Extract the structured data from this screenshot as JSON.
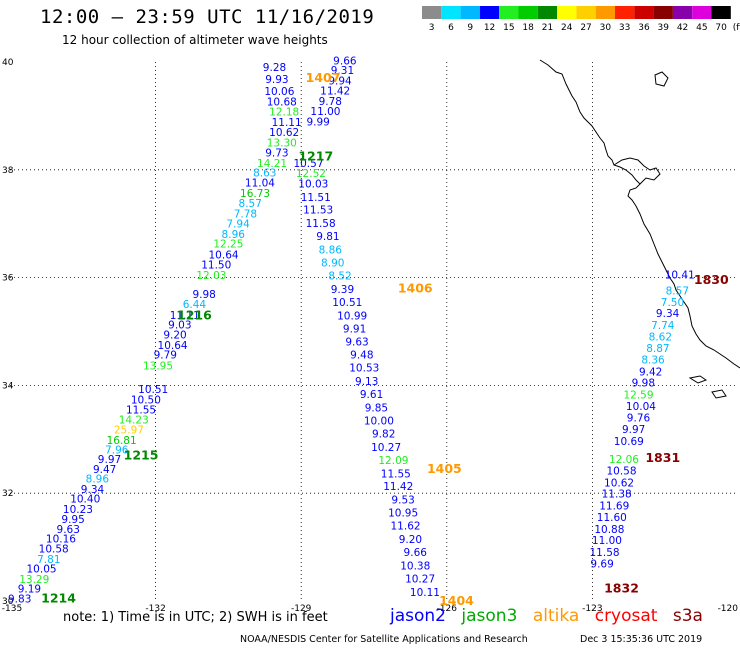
{
  "header": {
    "title": "12:00 – 23:59 UTC 11/16/2019",
    "subtitle": "12 hour collection of altimeter wave heights"
  },
  "legend": {
    "unit": "(ft)",
    "bins": [
      {
        "label": "3",
        "color": "#8c8c8c"
      },
      {
        "label": "6",
        "color": "#00e5ff"
      },
      {
        "label": "9",
        "color": "#00b8ff"
      },
      {
        "label": "12",
        "color": "#0000ff"
      },
      {
        "label": "15",
        "color": "#22ee22"
      },
      {
        "label": "18",
        "color": "#00cc00"
      },
      {
        "label": "21",
        "color": "#008800"
      },
      {
        "label": "24",
        "color": "#ffff00"
      },
      {
        "label": "27",
        "color": "#ffd000"
      },
      {
        "label": "30",
        "color": "#ff9900"
      },
      {
        "label": "33",
        "color": "#ff2200"
      },
      {
        "label": "36",
        "color": "#cc0000"
      },
      {
        "label": "39",
        "color": "#880000"
      },
      {
        "label": "42",
        "color": "#8800aa"
      },
      {
        "label": "45",
        "color": "#dd00dd"
      },
      {
        "label": "70",
        "color": "#000000"
      }
    ]
  },
  "map_axes": {
    "lon_min": -135,
    "lon_max": -120,
    "lat_min": 30,
    "lat_max": 40,
    "lon_ticks": [
      {
        "value": -135,
        "label": "-135"
      },
      {
        "value": -132,
        "label": "-132"
      },
      {
        "value": -129,
        "label": "-129"
      },
      {
        "value": -126,
        "label": "-126"
      },
      {
        "value": -123,
        "label": "-123"
      },
      {
        "value": -120,
        "label": "-120"
      }
    ],
    "lat_ticks": [
      {
        "value": 40,
        "label": "40"
      },
      {
        "value": 38,
        "label": "38"
      },
      {
        "value": 36,
        "label": "36"
      },
      {
        "value": 34,
        "label": "34"
      },
      {
        "value": 32,
        "label": "32"
      },
      {
        "value": 30,
        "label": "30"
      }
    ]
  },
  "pass_labels": [
    {
      "text": "1214",
      "sat": "jason3",
      "lon": -134.0,
      "lat": 30.05
    },
    {
      "text": "1215",
      "sat": "jason3",
      "lon": -132.3,
      "lat": 32.7
    },
    {
      "text": "1216",
      "sat": "jason3",
      "lon": -131.2,
      "lat": 35.3
    },
    {
      "text": "1217",
      "sat": "jason3",
      "lon": -128.7,
      "lat": 38.25
    },
    {
      "text": "1404",
      "sat": "altika",
      "lon": -125.8,
      "lat": 30.0
    },
    {
      "text": "1405",
      "sat": "altika",
      "lon": -126.05,
      "lat": 32.45
    },
    {
      "text": "1406",
      "sat": "altika",
      "lon": -126.65,
      "lat": 35.8
    },
    {
      "text": "1407",
      "sat": "altika",
      "lon": -128.55,
      "lat": 39.7
    },
    {
      "text": "1830",
      "sat": "s3a",
      "lon": -120.55,
      "lat": 35.96
    },
    {
      "text": "1831",
      "sat": "s3a",
      "lon": -121.55,
      "lat": 32.65
    },
    {
      "text": "1832",
      "sat": "s3a",
      "lon": -122.4,
      "lat": 30.23
    }
  ],
  "tracks": [
    {
      "name": "1214-1217",
      "points": [
        {
          "v": "9.83",
          "c": "#0000ff",
          "lon": -134.8,
          "lat": 30.05
        },
        {
          "v": "9.19",
          "c": "#0000ff",
          "lon": -134.6,
          "lat": 30.23
        },
        {
          "v": "13.29",
          "c": "#22ee22",
          "lon": -134.5,
          "lat": 30.41
        },
        {
          "v": "10.05",
          "c": "#0000ff",
          "lon": -134.35,
          "lat": 30.6
        },
        {
          "v": "7.81",
          "c": "#00b8ff",
          "lon": -134.2,
          "lat": 30.78
        },
        {
          "v": "10.58",
          "c": "#0000ff",
          "lon": -134.1,
          "lat": 30.97
        },
        {
          "v": "10.16",
          "c": "#0000ff",
          "lon": -133.95,
          "lat": 31.16
        },
        {
          "v": "9.63",
          "c": "#0000ff",
          "lon": -133.8,
          "lat": 31.34
        },
        {
          "v": "9.95",
          "c": "#0000ff",
          "lon": -133.7,
          "lat": 31.52
        },
        {
          "v": "10.23",
          "c": "#0000ff",
          "lon": -133.6,
          "lat": 31.71
        },
        {
          "v": "10.40",
          "c": "#0000ff",
          "lon": -133.45,
          "lat": 31.9
        },
        {
          "v": "9.34",
          "c": "#0000ff",
          "lon": -133.3,
          "lat": 32.08
        },
        {
          "v": "8.96",
          "c": "#00b8ff",
          "lon": -133.2,
          "lat": 32.27
        },
        {
          "v": "9.47",
          "c": "#0000ff",
          "lon": -133.05,
          "lat": 32.45
        },
        {
          "v": "9.97",
          "c": "#0000ff",
          "lon": -132.95,
          "lat": 32.63
        },
        {
          "v": "7.96",
          "c": "#00b8ff",
          "lon": -132.8,
          "lat": 32.81
        },
        {
          "v": "16.81",
          "c": "#00cc00",
          "lon": -132.7,
          "lat": 32.99
        },
        {
          "v": "25.97",
          "c": "#ffd000",
          "lon": -132.55,
          "lat": 33.18
        },
        {
          "v": "14.23",
          "c": "#22ee22",
          "lon": -132.45,
          "lat": 33.37
        },
        {
          "v": "11.55",
          "c": "#0000ff",
          "lon": -132.3,
          "lat": 33.55
        },
        {
          "v": "10.50",
          "c": "#0000ff",
          "lon": -132.2,
          "lat": 33.74
        },
        {
          "v": "10.51",
          "c": "#0000ff",
          "lon": -132.05,
          "lat": 33.93
        },
        {
          "v": "13.95",
          "c": "#22ee22",
          "lon": -131.95,
          "lat": 34.37
        },
        {
          "v": "9.79",
          "c": "#0000ff",
          "lon": -131.8,
          "lat": 34.57
        },
        {
          "v": "10.64",
          "c": "#0000ff",
          "lon": -131.65,
          "lat": 34.75
        },
        {
          "v": "9.20",
          "c": "#0000ff",
          "lon": -131.6,
          "lat": 34.94
        },
        {
          "v": "9.03",
          "c": "#0000ff",
          "lon": -131.5,
          "lat": 35.13
        },
        {
          "v": "11.11",
          "c": "#0000ff",
          "lon": -131.4,
          "lat": 35.31
        },
        {
          "v": "6.44",
          "c": "#00b8ff",
          "lon": -131.2,
          "lat": 35.51
        },
        {
          "v": "9.98",
          "c": "#0000ff",
          "lon": -131.0,
          "lat": 35.7
        },
        {
          "v": "12.03",
          "c": "#22ee22",
          "lon": -130.85,
          "lat": 36.05
        },
        {
          "v": "11.50",
          "c": "#0000ff",
          "lon": -130.75,
          "lat": 36.24
        },
        {
          "v": "10.64",
          "c": "#0000ff",
          "lon": -130.6,
          "lat": 36.43
        },
        {
          "v": "12.25",
          "c": "#22ee22",
          "lon": -130.5,
          "lat": 36.63
        },
        {
          "v": "8.96",
          "c": "#00b8ff",
          "lon": -130.4,
          "lat": 36.81
        },
        {
          "v": "7.94",
          "c": "#00b8ff",
          "lon": -130.3,
          "lat": 37.0
        },
        {
          "v": "7.78",
          "c": "#00b8ff",
          "lon": -130.15,
          "lat": 37.19
        },
        {
          "v": "8.57",
          "c": "#00b8ff",
          "lon": -130.05,
          "lat": 37.38
        },
        {
          "v": "16.73",
          "c": "#00cc00",
          "lon": -129.95,
          "lat": 37.57
        },
        {
          "v": "11.04",
          "c": "#0000ff",
          "lon": -129.85,
          "lat": 37.76
        },
        {
          "v": "8.63",
          "c": "#00b8ff",
          "lon": -129.75,
          "lat": 37.95
        },
        {
          "v": "14.21",
          "c": "#22ee22",
          "lon": -129.6,
          "lat": 38.13
        },
        {
          "v": "9.73",
          "c": "#0000ff",
          "lon": -129.5,
          "lat": 38.32
        },
        {
          "v": "13.30",
          "c": "#22ee22",
          "lon": -129.4,
          "lat": 38.51
        },
        {
          "v": "10.62",
          "c": "#0000ff",
          "lon": -129.35,
          "lat": 38.7
        },
        {
          "v": "11.11",
          "c": "#0000ff",
          "lon": -129.3,
          "lat": 38.89
        },
        {
          "v": "12.18",
          "c": "#22ee22",
          "lon": -129.35,
          "lat": 39.08
        },
        {
          "v": "10.68",
          "c": "#0000ff",
          "lon": -129.4,
          "lat": 39.27
        },
        {
          "v": "10.06",
          "c": "#0000ff",
          "lon": -129.45,
          "lat": 39.46
        },
        {
          "v": "9.93",
          "c": "#0000ff",
          "lon": -129.5,
          "lat": 39.68
        },
        {
          "v": "9.28",
          "c": "#0000ff",
          "lon": -129.55,
          "lat": 39.91
        }
      ]
    },
    {
      "name": "1404-1407",
      "points": [
        {
          "v": "9.66",
          "c": "#0000ff",
          "lon": -128.1,
          "lat": 40.03
        },
        {
          "v": "9.31",
          "c": "#0000ff",
          "lon": -128.15,
          "lat": 39.85
        },
        {
          "v": "9.94",
          "c": "#0000ff",
          "lon": -128.2,
          "lat": 39.66
        },
        {
          "v": "11.42",
          "c": "#0000ff",
          "lon": -128.3,
          "lat": 39.47
        },
        {
          "v": "9.78",
          "c": "#0000ff",
          "lon": -128.4,
          "lat": 39.28
        },
        {
          "v": "11.00",
          "c": "#0000ff",
          "lon": -128.5,
          "lat": 39.09
        },
        {
          "v": "9.99",
          "c": "#0000ff",
          "lon": -128.65,
          "lat": 38.9
        },
        {
          "v": "10.57",
          "c": "#0000ff",
          "lon": -128.85,
          "lat": 38.13
        },
        {
          "v": "12.52",
          "c": "#22ee22",
          "lon": -128.8,
          "lat": 37.94
        },
        {
          "v": "10.03",
          "c": "#0000ff",
          "lon": -128.75,
          "lat": 37.75
        },
        {
          "v": "11.51",
          "c": "#0000ff",
          "lon": -128.7,
          "lat": 37.5
        },
        {
          "v": "11.53",
          "c": "#0000ff",
          "lon": -128.65,
          "lat": 37.26
        },
        {
          "v": "11.58",
          "c": "#0000ff",
          "lon": -128.6,
          "lat": 37.01
        },
        {
          "v": "9.81",
          "c": "#0000ff",
          "lon": -128.45,
          "lat": 36.77
        },
        {
          "v": "8.86",
          "c": "#00b8ff",
          "lon": -128.4,
          "lat": 36.52
        },
        {
          "v": "8.90",
          "c": "#00b8ff",
          "lon": -128.35,
          "lat": 36.28
        },
        {
          "v": "8.52",
          "c": "#00b8ff",
          "lon": -128.2,
          "lat": 36.04
        },
        {
          "v": "9.39",
          "c": "#0000ff",
          "lon": -128.15,
          "lat": 35.79
        },
        {
          "v": "10.51",
          "c": "#0000ff",
          "lon": -128.05,
          "lat": 35.55
        },
        {
          "v": "10.99",
          "c": "#0000ff",
          "lon": -127.95,
          "lat": 35.3
        },
        {
          "v": "9.91",
          "c": "#0000ff",
          "lon": -127.9,
          "lat": 35.06
        },
        {
          "v": "9.63",
          "c": "#0000ff",
          "lon": -127.85,
          "lat": 34.81
        },
        {
          "v": "9.48",
          "c": "#0000ff",
          "lon": -127.75,
          "lat": 34.57
        },
        {
          "v": "10.53",
          "c": "#0000ff",
          "lon": -127.7,
          "lat": 34.33
        },
        {
          "v": "9.13",
          "c": "#0000ff",
          "lon": -127.65,
          "lat": 34.08
        },
        {
          "v": "9.61",
          "c": "#0000ff",
          "lon": -127.55,
          "lat": 33.84
        },
        {
          "v": "9.85",
          "c": "#0000ff",
          "lon": -127.45,
          "lat": 33.59
        },
        {
          "v": "10.00",
          "c": "#0000ff",
          "lon": -127.4,
          "lat": 33.35
        },
        {
          "v": "9.82",
          "c": "#0000ff",
          "lon": -127.3,
          "lat": 33.11
        },
        {
          "v": "10.27",
          "c": "#0000ff",
          "lon": -127.25,
          "lat": 32.86
        },
        {
          "v": "12.09",
          "c": "#22ee22",
          "lon": -127.1,
          "lat": 32.62
        },
        {
          "v": "11.55",
          "c": "#0000ff",
          "lon": -127.05,
          "lat": 32.37
        },
        {
          "v": "11.42",
          "c": "#0000ff",
          "lon": -127.0,
          "lat": 32.13
        },
        {
          "v": "9.53",
          "c": "#0000ff",
          "lon": -126.9,
          "lat": 31.88
        },
        {
          "v": "10.95",
          "c": "#0000ff",
          "lon": -126.9,
          "lat": 31.64
        },
        {
          "v": "11.62",
          "c": "#0000ff",
          "lon": -126.85,
          "lat": 31.4
        },
        {
          "v": "9.20",
          "c": "#0000ff",
          "lon": -126.75,
          "lat": 31.15
        },
        {
          "v": "9.66",
          "c": "#0000ff",
          "lon": -126.65,
          "lat": 30.91
        },
        {
          "v": "10.38",
          "c": "#0000ff",
          "lon": -126.65,
          "lat": 30.66
        },
        {
          "v": "10.27",
          "c": "#0000ff",
          "lon": -126.55,
          "lat": 30.42
        },
        {
          "v": "10.11",
          "c": "#0000ff",
          "lon": -126.45,
          "lat": 30.17
        }
      ]
    },
    {
      "name": "1830-1832",
      "points": [
        {
          "v": "10.41",
          "c": "#0000ff",
          "lon": -121.2,
          "lat": 36.06
        },
        {
          "v": "8.57",
          "c": "#00b8ff",
          "lon": -121.25,
          "lat": 35.76
        },
        {
          "v": "7.50",
          "c": "#00b8ff",
          "lon": -121.35,
          "lat": 35.55
        },
        {
          "v": "9.34",
          "c": "#0000ff",
          "lon": -121.45,
          "lat": 35.34
        },
        {
          "v": "7.74",
          "c": "#00b8ff",
          "lon": -121.55,
          "lat": 35.12
        },
        {
          "v": "8.62",
          "c": "#00b8ff",
          "lon": -121.6,
          "lat": 34.91
        },
        {
          "v": "8.87",
          "c": "#00b8ff",
          "lon": -121.65,
          "lat": 34.69
        },
        {
          "v": "8.36",
          "c": "#00b8ff",
          "lon": -121.75,
          "lat": 34.48
        },
        {
          "v": "9.42",
          "c": "#0000ff",
          "lon": -121.8,
          "lat": 34.26
        },
        {
          "v": "9.98",
          "c": "#0000ff",
          "lon": -121.95,
          "lat": 34.05
        },
        {
          "v": "12.59",
          "c": "#22ee22",
          "lon": -122.05,
          "lat": 33.83
        },
        {
          "v": "10.04",
          "c": "#0000ff",
          "lon": -122.0,
          "lat": 33.62
        },
        {
          "v": "9.76",
          "c": "#0000ff",
          "lon": -122.05,
          "lat": 33.4
        },
        {
          "v": "9.97",
          "c": "#0000ff",
          "lon": -122.15,
          "lat": 33.19
        },
        {
          "v": "10.69",
          "c": "#0000ff",
          "lon": -122.25,
          "lat": 32.97
        },
        {
          "v": "12.06",
          "c": "#22ee22",
          "lon": -122.35,
          "lat": 32.63
        },
        {
          "v": "10.58",
          "c": "#0000ff",
          "lon": -122.4,
          "lat": 32.42
        },
        {
          "v": "10.62",
          "c": "#0000ff",
          "lon": -122.45,
          "lat": 32.2
        },
        {
          "v": "11.38",
          "c": "#0000ff",
          "lon": -122.5,
          "lat": 31.99
        },
        {
          "v": "11.69",
          "c": "#0000ff",
          "lon": -122.55,
          "lat": 31.77
        },
        {
          "v": "11.60",
          "c": "#0000ff",
          "lon": -122.6,
          "lat": 31.56
        },
        {
          "v": "10.88",
          "c": "#0000ff",
          "lon": -122.65,
          "lat": 31.34
        },
        {
          "v": "11.00",
          "c": "#0000ff",
          "lon": -122.7,
          "lat": 31.13
        },
        {
          "v": "11.58",
          "c": "#0000ff",
          "lon": -122.75,
          "lat": 30.91
        },
        {
          "v": "9.69",
          "c": "#0000ff",
          "lon": -122.8,
          "lat": 30.7
        }
      ]
    }
  ],
  "notes": {
    "text": "note:  1) Time is in UTC;  2) SWH is in feet"
  },
  "satellites": [
    {
      "name": "jason2",
      "color": "#0000ff"
    },
    {
      "name": "jason3",
      "color": "#00aa00"
    },
    {
      "name": "altika",
      "color": "#ff9900"
    },
    {
      "name": "cryosat",
      "color": "#ff0000"
    },
    {
      "name": "s3a",
      "color": "#880000"
    }
  ],
  "footer": {
    "credit": "NOAA/NESDIS Center for Satellite Applications and Research",
    "timestamp": "Dec  3 15:35:36 UTC 2019"
  },
  "colors": {
    "grid": "#000000",
    "coast": "#000000",
    "pass_jason3": "#008800",
    "pass_altika": "#ff9900",
    "pass_s3a": "#880000"
  }
}
